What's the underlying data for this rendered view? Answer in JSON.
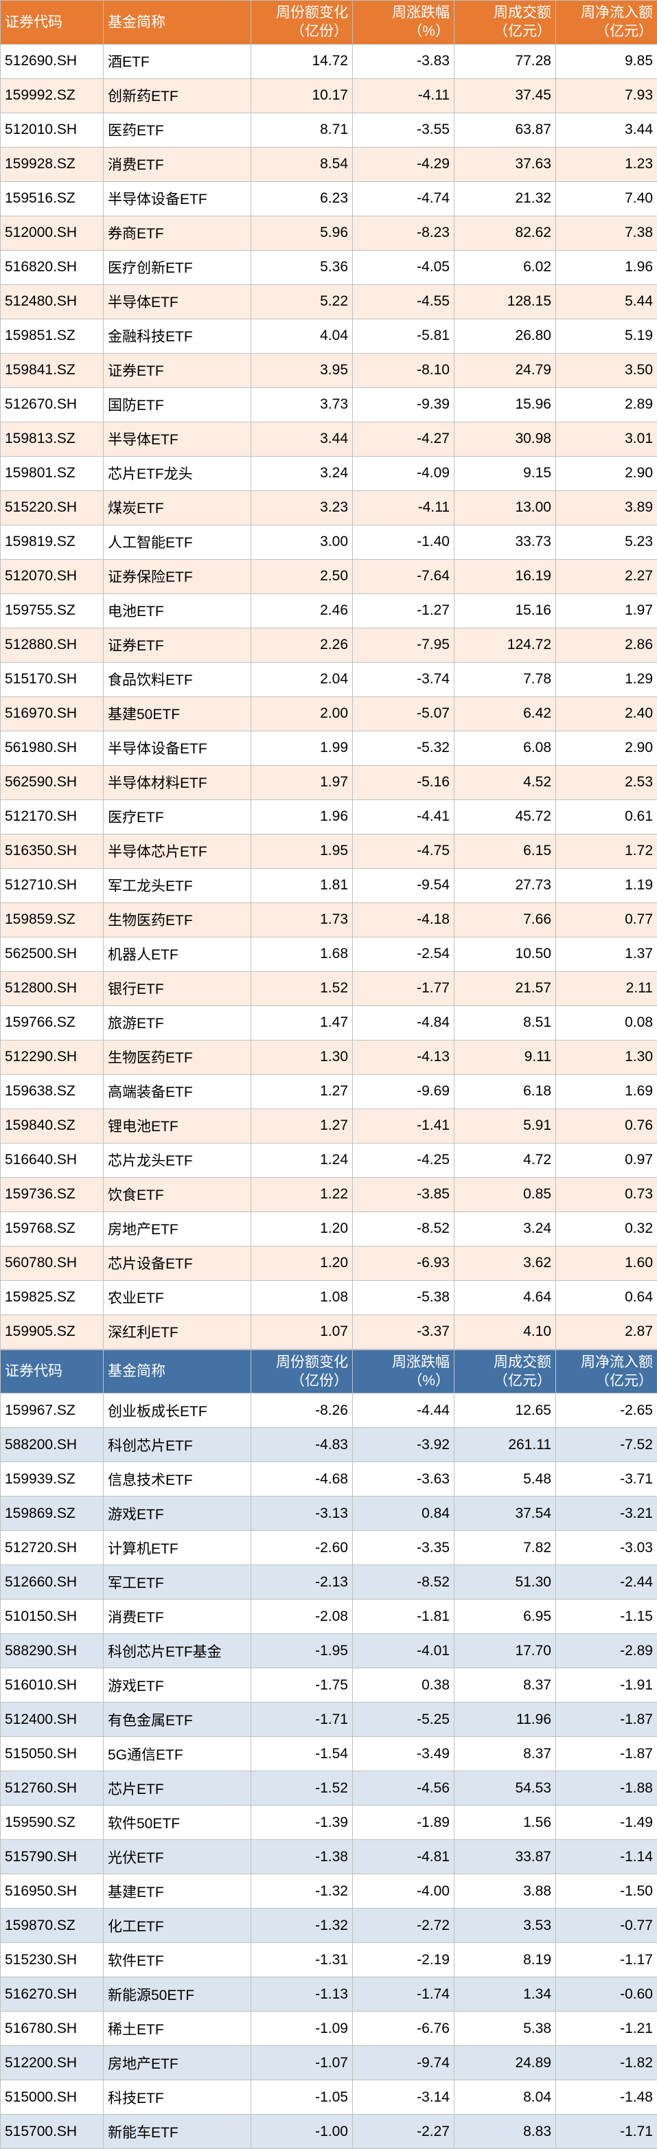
{
  "tables": [
    {
      "headerClass": "header-orange",
      "rowLight": "row-orange-light",
      "rowWhite": "row-orange-white",
      "columns": [
        "证券代码",
        "基金简称",
        "周份额变化（亿份）",
        "周涨跌幅（%）",
        "周成交额（亿元）",
        "周净流入额（亿元）"
      ],
      "rows": [
        [
          "512690.SH",
          "酒ETF",
          "14.72",
          "-3.83",
          "77.28",
          "9.85"
        ],
        [
          "159992.SZ",
          "创新药ETF",
          "10.17",
          "-4.11",
          "37.45",
          "7.93"
        ],
        [
          "512010.SH",
          "医药ETF",
          "8.71",
          "-3.55",
          "63.87",
          "3.44"
        ],
        [
          "159928.SZ",
          "消费ETF",
          "8.54",
          "-4.29",
          "37.63",
          "1.23"
        ],
        [
          "159516.SZ",
          "半导体设备ETF",
          "6.23",
          "-4.74",
          "21.32",
          "7.40"
        ],
        [
          "512000.SH",
          "券商ETF",
          "5.96",
          "-8.23",
          "82.62",
          "7.38"
        ],
        [
          "516820.SH",
          "医疗创新ETF",
          "5.36",
          "-4.05",
          "6.02",
          "1.96"
        ],
        [
          "512480.SH",
          "半导体ETF",
          "5.22",
          "-4.55",
          "128.15",
          "5.44"
        ],
        [
          "159851.SZ",
          "金融科技ETF",
          "4.04",
          "-5.81",
          "26.80",
          "5.19"
        ],
        [
          "159841.SZ",
          "证券ETF",
          "3.95",
          "-8.10",
          "24.79",
          "3.50"
        ],
        [
          "512670.SH",
          "国防ETF",
          "3.73",
          "-9.39",
          "15.96",
          "2.89"
        ],
        [
          "159813.SZ",
          "半导体ETF",
          "3.44",
          "-4.27",
          "30.98",
          "3.01"
        ],
        [
          "159801.SZ",
          "芯片ETF龙头",
          "3.24",
          "-4.09",
          "9.15",
          "2.90"
        ],
        [
          "515220.SH",
          "煤炭ETF",
          "3.23",
          "-4.11",
          "13.00",
          "3.89"
        ],
        [
          "159819.SZ",
          "人工智能ETF",
          "3.00",
          "-1.40",
          "33.73",
          "5.23"
        ],
        [
          "512070.SH",
          "证券保险ETF",
          "2.50",
          "-7.64",
          "16.19",
          "2.27"
        ],
        [
          "159755.SZ",
          "电池ETF",
          "2.46",
          "-1.27",
          "15.16",
          "1.97"
        ],
        [
          "512880.SH",
          "证券ETF",
          "2.26",
          "-7.95",
          "124.72",
          "2.86"
        ],
        [
          "515170.SH",
          "食品饮料ETF",
          "2.04",
          "-3.74",
          "7.78",
          "1.29"
        ],
        [
          "516970.SH",
          "基建50ETF",
          "2.00",
          "-5.07",
          "6.42",
          "2.40"
        ],
        [
          "561980.SH",
          "半导体设备ETF",
          "1.99",
          "-5.32",
          "6.08",
          "2.90"
        ],
        [
          "562590.SH",
          "半导体材料ETF",
          "1.97",
          "-5.16",
          "4.52",
          "2.53"
        ],
        [
          "512170.SH",
          "医疗ETF",
          "1.96",
          "-4.41",
          "45.72",
          "0.61"
        ],
        [
          "516350.SH",
          "半导体芯片ETF",
          "1.95",
          "-4.75",
          "6.15",
          "1.72"
        ],
        [
          "512710.SH",
          "军工龙头ETF",
          "1.81",
          "-9.54",
          "27.73",
          "1.19"
        ],
        [
          "159859.SZ",
          "生物医药ETF",
          "1.73",
          "-4.18",
          "7.66",
          "0.77"
        ],
        [
          "562500.SH",
          "机器人ETF",
          "1.68",
          "-2.54",
          "10.50",
          "1.37"
        ],
        [
          "512800.SH",
          "银行ETF",
          "1.52",
          "-1.77",
          "21.57",
          "2.11"
        ],
        [
          "159766.SZ",
          "旅游ETF",
          "1.47",
          "-4.84",
          "8.51",
          "0.08"
        ],
        [
          "512290.SH",
          "生物医药ETF",
          "1.30",
          "-4.13",
          "9.11",
          "1.30"
        ],
        [
          "159638.SZ",
          "高端装备ETF",
          "1.27",
          "-9.69",
          "6.18",
          "1.69"
        ],
        [
          "159840.SZ",
          "锂电池ETF",
          "1.27",
          "-1.41",
          "5.91",
          "0.76"
        ],
        [
          "516640.SH",
          "芯片龙头ETF",
          "1.24",
          "-4.25",
          "4.72",
          "0.97"
        ],
        [
          "159736.SZ",
          "饮食ETF",
          "1.22",
          "-3.85",
          "0.85",
          "0.73"
        ],
        [
          "159768.SZ",
          "房地产ETF",
          "1.20",
          "-8.52",
          "3.24",
          "0.32"
        ],
        [
          "560780.SH",
          "芯片设备ETF",
          "1.20",
          "-6.93",
          "3.62",
          "1.60"
        ],
        [
          "159825.SZ",
          "农业ETF",
          "1.08",
          "-5.38",
          "4.64",
          "0.64"
        ],
        [
          "159905.SZ",
          "深红利ETF",
          "1.07",
          "-3.37",
          "4.10",
          "2.87"
        ]
      ]
    },
    {
      "headerClass": "header-blue",
      "rowLight": "row-blue-light",
      "rowWhite": "row-blue-white",
      "columns": [
        "证券代码",
        "基金简称",
        "周份额变化（亿份）",
        "周涨跌幅（%）",
        "周成交额（亿元）",
        "周净流入额（亿元）"
      ],
      "rows": [
        [
          "159967.SZ",
          "创业板成长ETF",
          "-8.26",
          "-4.44",
          "12.65",
          "-2.65"
        ],
        [
          "588200.SH",
          "科创芯片ETF",
          "-4.83",
          "-3.92",
          "261.11",
          "-7.52"
        ],
        [
          "159939.SZ",
          "信息技术ETF",
          "-4.68",
          "-3.63",
          "5.48",
          "-3.71"
        ],
        [
          "159869.SZ",
          "游戏ETF",
          "-3.13",
          "0.84",
          "37.54",
          "-3.21"
        ],
        [
          "512720.SH",
          "计算机ETF",
          "-2.60",
          "-3.35",
          "7.82",
          "-3.03"
        ],
        [
          "512660.SH",
          "军工ETF",
          "-2.13",
          "-8.52",
          "51.30",
          "-2.44"
        ],
        [
          "510150.SH",
          "消费ETF",
          "-2.08",
          "-1.81",
          "6.95",
          "-1.15"
        ],
        [
          "588290.SH",
          "科创芯片ETF基金",
          "-1.95",
          "-4.01",
          "17.70",
          "-2.89"
        ],
        [
          "516010.SH",
          "游戏ETF",
          "-1.75",
          "0.38",
          "8.37",
          "-1.91"
        ],
        [
          "512400.SH",
          "有色金属ETF",
          "-1.71",
          "-5.25",
          "11.96",
          "-1.87"
        ],
        [
          "515050.SH",
          "5G通信ETF",
          "-1.54",
          "-3.49",
          "8.37",
          "-1.87"
        ],
        [
          "512760.SH",
          "芯片ETF",
          "-1.52",
          "-4.56",
          "54.53",
          "-1.88"
        ],
        [
          "159590.SZ",
          "软件50ETF",
          "-1.39",
          "-1.89",
          "1.56",
          "-1.49"
        ],
        [
          "515790.SH",
          "光伏ETF",
          "-1.38",
          "-4.81",
          "33.87",
          "-1.14"
        ],
        [
          "516950.SH",
          "基建ETF",
          "-1.32",
          "-4.00",
          "3.88",
          "-1.50"
        ],
        [
          "159870.SZ",
          "化工ETF",
          "-1.32",
          "-2.72",
          "3.53",
          "-0.77"
        ],
        [
          "515230.SH",
          "软件ETF",
          "-1.31",
          "-2.19",
          "8.19",
          "-1.17"
        ],
        [
          "516270.SH",
          "新能源50ETF",
          "-1.13",
          "-1.74",
          "1.34",
          "-0.60"
        ],
        [
          "516780.SH",
          "稀土ETF",
          "-1.09",
          "-6.76",
          "5.38",
          "-1.21"
        ],
        [
          "512200.SH",
          "房地产ETF",
          "-1.07",
          "-9.74",
          "24.89",
          "-1.82"
        ],
        [
          "515000.SH",
          "科技ETF",
          "-1.05",
          "-3.14",
          "8.04",
          "-1.48"
        ],
        [
          "515700.SH",
          "新能车ETF",
          "-1.00",
          "-2.27",
          "8.83",
          "-1.71"
        ]
      ]
    }
  ],
  "colClasses": [
    "col-code",
    "col-name",
    "col-num",
    "col-num",
    "col-num",
    "col-num"
  ]
}
